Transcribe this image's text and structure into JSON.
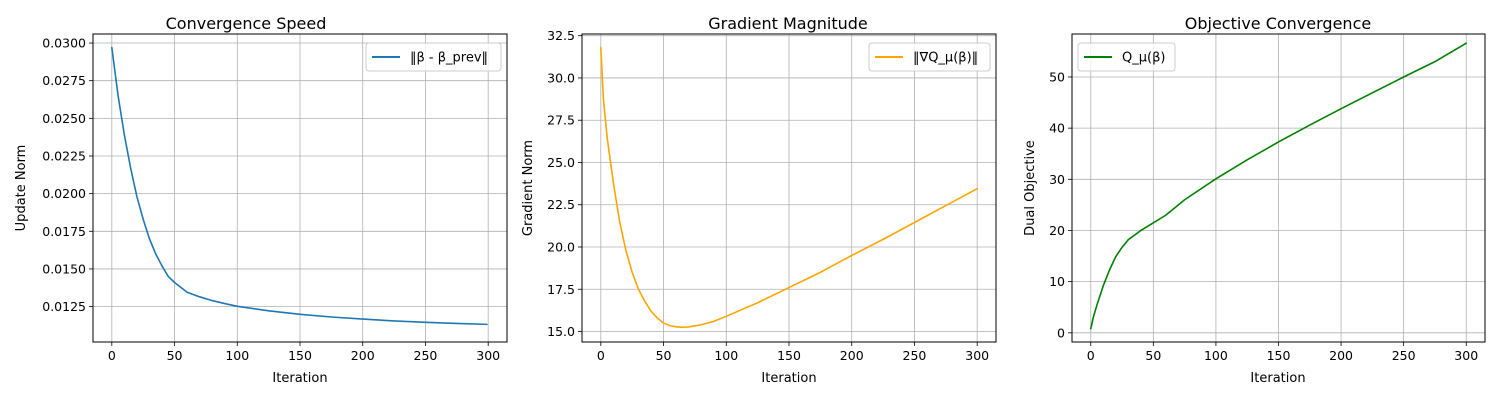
{
  "chart_data": [
    {
      "type": "line",
      "title": "Convergence Speed",
      "xlabel": "Iteration",
      "ylabel": "Update Norm",
      "xlim": [
        -15,
        315
      ],
      "ylim": [
        0.01015,
        0.0306
      ],
      "xticks": [
        0,
        50,
        100,
        150,
        200,
        250,
        300
      ],
      "yticks": [
        0.0125,
        0.015,
        0.0175,
        0.02,
        0.0225,
        0.025,
        0.0275,
        0.03
      ],
      "ytick_labels": [
        "0.0125",
        "0.0150",
        "0.0175",
        "0.0200",
        "0.0225",
        "0.0250",
        "0.0275",
        "0.0300"
      ],
      "grid": true,
      "legend_position": "upper-right",
      "series": [
        {
          "name": "‖β - β_prev‖",
          "color": "#1f77b4",
          "x": [
            0,
            5,
            10,
            15,
            20,
            25,
            30,
            35,
            40,
            45,
            50,
            60,
            70,
            80,
            90,
            100,
            125,
            150,
            175,
            200,
            225,
            250,
            275,
            299
          ],
          "y": [
            0.0297,
            0.0265,
            0.0239,
            0.0217,
            0.0198,
            0.0183,
            0.017,
            0.016,
            0.0152,
            0.0145,
            0.0141,
            0.01345,
            0.01315,
            0.0129,
            0.0127,
            0.01252,
            0.01222,
            0.01199,
            0.01181,
            0.01167,
            0.01155,
            0.01146,
            0.01138,
            0.01132
          ]
        }
      ]
    },
    {
      "type": "line",
      "title": "Gradient Magnitude",
      "xlabel": "Iteration",
      "ylabel": "Gradient Norm",
      "xlim": [
        -15,
        315
      ],
      "ylim": [
        14.38,
        32.6
      ],
      "xticks": [
        0,
        50,
        100,
        150,
        200,
        250,
        300
      ],
      "yticks": [
        15,
        17.5,
        20,
        22.5,
        25,
        27.5,
        30,
        32.5
      ],
      "ytick_labels": [
        "15.0",
        "17.5",
        "20.0",
        "22.5",
        "25.0",
        "27.5",
        "30.0",
        "32.5"
      ],
      "grid": true,
      "legend_position": "upper-right",
      "series": [
        {
          "name": "‖∇Q_μ(β)‖",
          "color": "#ffa500",
          "x": [
            0,
            2,
            5,
            10,
            15,
            20,
            25,
            30,
            35,
            40,
            45,
            50,
            55,
            60,
            65,
            70,
            80,
            90,
            100,
            125,
            150,
            175,
            200,
            225,
            250,
            275,
            300
          ],
          "y": [
            31.8,
            28.8,
            26.5,
            23.8,
            21.5,
            19.8,
            18.5,
            17.5,
            16.8,
            16.2,
            15.8,
            15.5,
            15.35,
            15.28,
            15.25,
            15.27,
            15.4,
            15.6,
            15.9,
            16.7,
            17.6,
            18.5,
            19.5,
            20.45,
            21.45,
            22.45,
            23.45
          ]
        }
      ]
    },
    {
      "type": "line",
      "title": "Objective Convergence",
      "xlabel": "Iteration",
      "ylabel": "Dual Objective",
      "xlim": [
        -15,
        315
      ],
      "ylim": [
        -1.8,
        58.4
      ],
      "xticks": [
        0,
        50,
        100,
        150,
        200,
        250,
        300
      ],
      "yticks": [
        0,
        10,
        20,
        30,
        40,
        50
      ],
      "ytick_labels": [
        "0",
        "10",
        "20",
        "30",
        "40",
        "50"
      ],
      "grid": true,
      "legend_position": "upper-left",
      "series": [
        {
          "name": "Q_μ(β)",
          "color": "#008000",
          "x": [
            0,
            2,
            5,
            10,
            15,
            20,
            25,
            30,
            40,
            50,
            60,
            75,
            100,
            125,
            150,
            175,
            200,
            225,
            250,
            275,
            300
          ],
          "y": [
            0.8,
            3.0,
            5.5,
            9.2,
            12.3,
            14.9,
            16.7,
            18.2,
            20.0,
            21.5,
            23.0,
            26.0,
            30.1,
            33.8,
            37.3,
            40.6,
            43.8,
            46.9,
            50.0,
            53.0,
            56.6
          ]
        }
      ]
    }
  ]
}
